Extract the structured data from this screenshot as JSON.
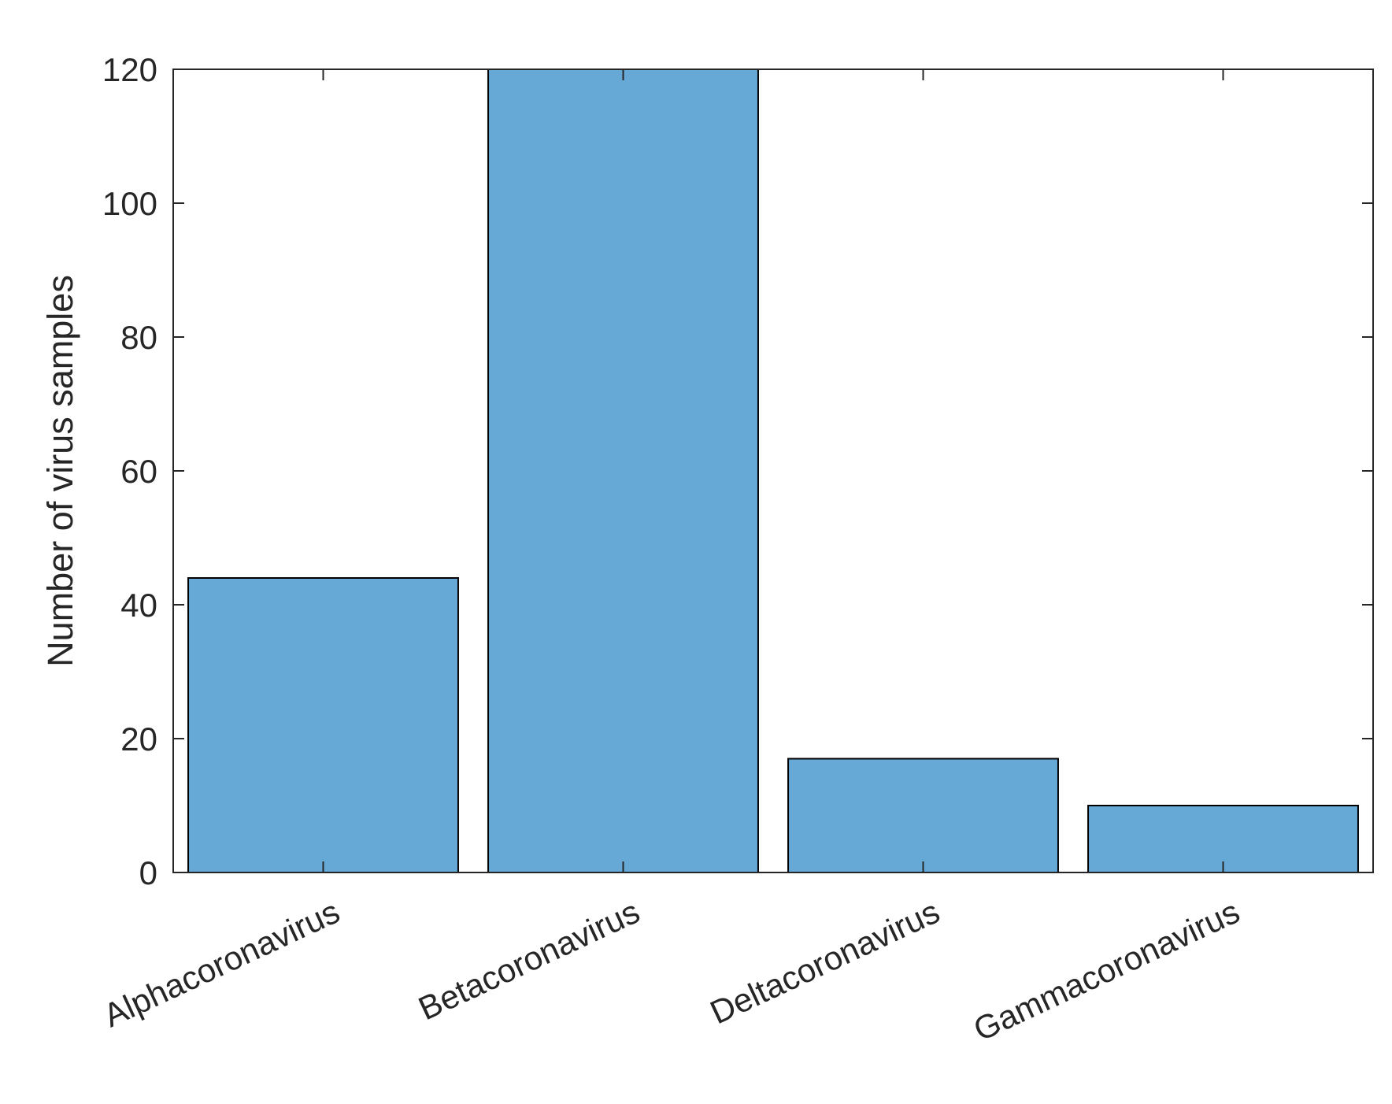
{
  "chart_data": {
    "type": "bar",
    "title": "",
    "xlabel": "",
    "ylabel": "Number of virus samples",
    "categories": [
      "Alphacoronavirus",
      "Betacoronavirus",
      "Deltacoronavirus",
      "Gammacoronavirus"
    ],
    "values": [
      44,
      120,
      17,
      10
    ],
    "ylim": [
      0,
      120
    ],
    "yticks": [
      0,
      20,
      40,
      60,
      80,
      100,
      120
    ],
    "grid": false,
    "legend": "none",
    "bar_color": "#66A9D6",
    "edge_color": "#000000",
    "axis_color": "#262626"
  }
}
